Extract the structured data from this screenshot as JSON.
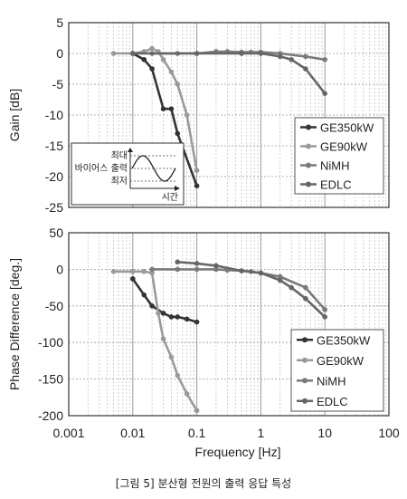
{
  "caption": "[그림 5] 분산형 전원의 출력 응답 특성",
  "chart_data": [
    {
      "type": "line",
      "x_scale": "log",
      "xlim": [
        0.001,
        100
      ],
      "ylim": [
        -25,
        5
      ],
      "ylabel": "Gain [dB]",
      "y_ticks": [
        "5",
        "0",
        "-5",
        "-10",
        "-15",
        "-20",
        "-25"
      ],
      "grid": true,
      "legend_position": "right",
      "series": [
        {
          "name": "GE350kW",
          "color": "#333333",
          "x": [
            0.01,
            0.015,
            0.02,
            0.03,
            0.04,
            0.05,
            0.1
          ],
          "y": [
            0,
            -1,
            -2.5,
            -9,
            -9,
            -13,
            -21.5
          ]
        },
        {
          "name": "GE90kW",
          "color": "#9a9a9a",
          "x": [
            0.005,
            0.01,
            0.015,
            0.02,
            0.025,
            0.03,
            0.04,
            0.05,
            0.07,
            0.1
          ],
          "y": [
            0,
            0,
            0.3,
            0.8,
            0.3,
            -1,
            -3,
            -5,
            -10,
            -19
          ]
        },
        {
          "name": "NiMH",
          "color": "#7a7a7a",
          "x": [
            0.02,
            0.05,
            0.1,
            0.2,
            0.3,
            0.5,
            0.7,
            1,
            2,
            5,
            10
          ],
          "y": [
            0,
            0,
            0,
            0.3,
            0.3,
            0.2,
            0.2,
            0.2,
            0,
            -0.5,
            -1
          ]
        },
        {
          "name": "EDLC",
          "color": "#666666",
          "x": [
            0.01,
            0.1,
            0.5,
            1,
            2,
            3,
            5,
            10
          ],
          "y": [
            0,
            0,
            0,
            0,
            -0.5,
            -1,
            -2.5,
            -6.5
          ]
        }
      ],
      "inset": {
        "max_label": "최대",
        "bias_label": "바이어스 출력",
        "min_label": "최저",
        "time_label": "시간"
      }
    },
    {
      "type": "line",
      "x_scale": "log",
      "xlim": [
        0.001,
        100
      ],
      "ylim": [
        -200,
        50
      ],
      "xlabel": "Frequency [Hz]",
      "ylabel": "Phase Difference [deg.]",
      "x_ticks": [
        "0.001",
        "0.01",
        "0.1",
        "1",
        "10",
        "100"
      ],
      "y_ticks": [
        "50",
        "0",
        "-50",
        "-100",
        "-150",
        "-200"
      ],
      "grid": true,
      "legend_position": "bottom-right",
      "series": [
        {
          "name": "GE350kW",
          "color": "#333333",
          "x": [
            0.01,
            0.015,
            0.02,
            0.03,
            0.04,
            0.05,
            0.07,
            0.1
          ],
          "y": [
            -13,
            -35,
            -50,
            -60,
            -65,
            -65,
            -68,
            -72
          ]
        },
        {
          "name": "GE90kW",
          "color": "#9a9a9a",
          "x": [
            0.005,
            0.01,
            0.015,
            0.02,
            0.025,
            0.03,
            0.04,
            0.05,
            0.07,
            0.1
          ],
          "y": [
            -3,
            -3,
            -3,
            -5,
            -60,
            -95,
            -120,
            -145,
            -170,
            -193
          ]
        },
        {
          "name": "NiMH",
          "color": "#7a7a7a",
          "x": [
            0.02,
            0.05,
            0.1,
            0.2,
            0.3,
            0.5,
            0.7,
            1,
            2,
            5,
            10
          ],
          "y": [
            0,
            0,
            0,
            0,
            -1,
            -2,
            -3,
            -5,
            -10,
            -25,
            -55
          ]
        },
        {
          "name": "EDLC",
          "color": "#666666",
          "x": [
            0.05,
            0.1,
            0.2,
            0.5,
            1,
            2,
            3,
            5,
            10
          ],
          "y": [
            10,
            8,
            5,
            -2,
            -5,
            -15,
            -25,
            -40,
            -65
          ]
        }
      ]
    }
  ]
}
